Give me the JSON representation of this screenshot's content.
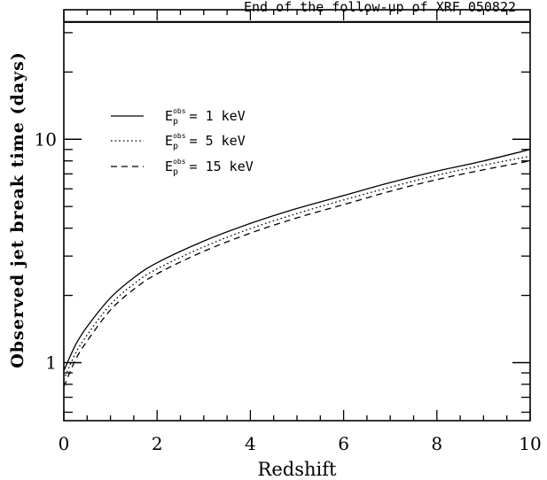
{
  "chart_data": {
    "type": "line",
    "xlabel": "Redshift",
    "ylabel": "Observed jet break time (days)",
    "xlim": [
      0,
      10
    ],
    "ylim": [
      0.55,
      38
    ],
    "yscale": "log",
    "xticks": [
      0,
      2,
      4,
      6,
      8,
      10
    ],
    "xtick_labels": [
      "0",
      "2",
      "4",
      "6",
      "8",
      "10"
    ],
    "yticks": [
      1,
      10
    ],
    "ytick_labels": [
      "1",
      "10"
    ],
    "legend_position": "upper-left",
    "annotation": {
      "text": "End of the follow-up of XRF 050822",
      "y": 33.5
    },
    "series": [
      {
        "legend_main": "E",
        "legend_sub": "p",
        "legend_sup": "obs",
        "legend_value": "= 1 keV",
        "style": "solid",
        "x": [
          0,
          0.25,
          0.5,
          1,
          1.5,
          2,
          3,
          4,
          5,
          6,
          7,
          8,
          9,
          10
        ],
        "y": [
          0.92,
          1.2,
          1.45,
          1.95,
          2.4,
          2.8,
          3.5,
          4.2,
          4.9,
          5.6,
          6.4,
          7.2,
          8.0,
          9.0
        ]
      },
      {
        "legend_main": "E",
        "legend_sub": "p",
        "legend_sup": "obs",
        "legend_value": "= 5 keV",
        "style": "dotted",
        "x": [
          0,
          0.25,
          0.5,
          1,
          1.5,
          2,
          3,
          4,
          5,
          6,
          7,
          8,
          9,
          10
        ],
        "y": [
          0.84,
          1.1,
          1.33,
          1.82,
          2.25,
          2.63,
          3.3,
          3.98,
          4.65,
          5.35,
          6.1,
          6.9,
          7.65,
          8.4
        ]
      },
      {
        "legend_main": "E",
        "legend_sub": "p",
        "legend_sup": "obs",
        "legend_value": "= 15 keV",
        "style": "dashed",
        "x": [
          0,
          0.25,
          0.5,
          1,
          1.5,
          2,
          3,
          4,
          5,
          6,
          7,
          8,
          9,
          10
        ],
        "y": [
          0.78,
          1.03,
          1.25,
          1.72,
          2.13,
          2.5,
          3.15,
          3.8,
          4.45,
          5.1,
          5.85,
          6.6,
          7.3,
          8.0
        ]
      }
    ]
  }
}
